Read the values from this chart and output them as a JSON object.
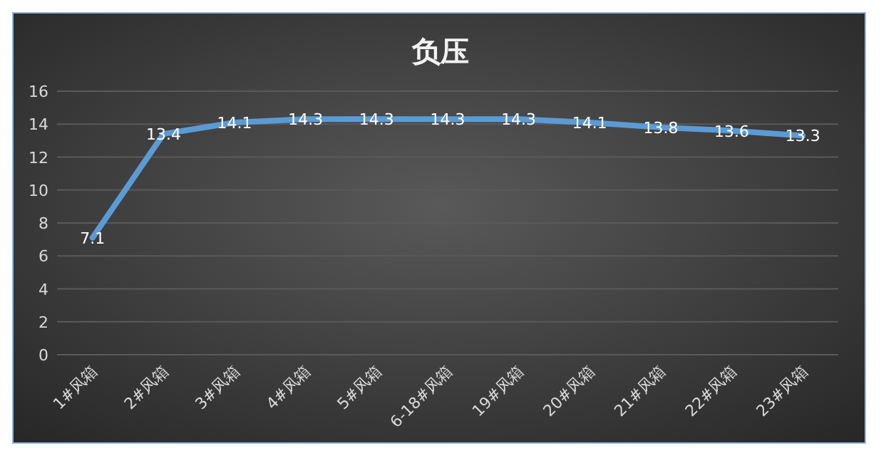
{
  "chart_data": {
    "type": "line",
    "title": "负压",
    "categories": [
      "1#风箱",
      "2#风箱",
      "3#风箱",
      "4#风箱",
      "5#风箱",
      "6-18#风箱",
      "19#风箱",
      "20#风箱",
      "21#风箱",
      "22#风箱",
      "23#风箱"
    ],
    "series": [
      {
        "color": "#5b9bd5",
        "values": [
          7.1,
          13.4,
          14.1,
          14.3,
          14.3,
          14.3,
          14.3,
          14.1,
          13.8,
          13.6,
          13.3
        ]
      }
    ],
    "ylim": [
      0,
      16
    ],
    "yticks": [
      0,
      2,
      4,
      6,
      8,
      10,
      12,
      14,
      16
    ],
    "grid": "y",
    "data_labels": true
  }
}
